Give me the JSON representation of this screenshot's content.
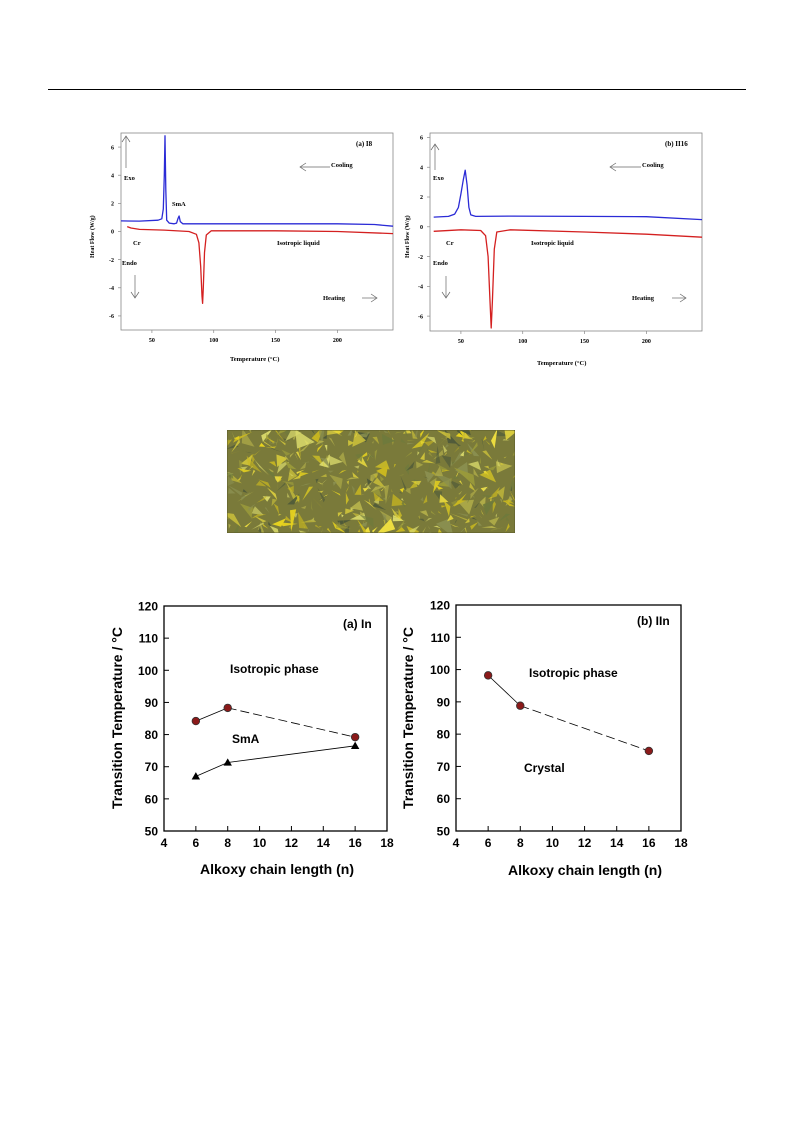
{
  "charts": {
    "dsc_a": {
      "type": "line",
      "title": "(a) I8",
      "xlabel": "Temperature (°C)",
      "ylabel": "Heat Flow (W/g)",
      "xticks": [
        50,
        100,
        150,
        200
      ],
      "yticks": [
        6,
        4,
        2,
        0,
        -2,
        -4,
        -6
      ],
      "xlim": [
        25,
        245
      ],
      "ylim": [
        -7,
        7
      ],
      "labels": {
        "exo": "Exo",
        "endo": "Endo",
        "cooling": "Cooling",
        "heating": "Heating",
        "cr": "Cr",
        "smA": "SmA",
        "iso": "Isotropic liquid"
      },
      "series": [
        {
          "color": "#2b2bd6",
          "points": [
            [
              25,
              0.75
            ],
            [
              40,
              0.74
            ],
            [
              55,
              0.8
            ],
            [
              58,
              0.9
            ],
            [
              59.2,
              1.6
            ],
            [
              60,
              4
            ],
            [
              60.6,
              6.8
            ],
            [
              61.2,
              3
            ],
            [
              62,
              0.8
            ],
            [
              64,
              0.6
            ],
            [
              68,
              0.55
            ],
            [
              70,
              0.6
            ],
            [
              71,
              0.9
            ],
            [
              72,
              1.1
            ],
            [
              73,
              0.7
            ],
            [
              75,
              0.55
            ],
            [
              90,
              0.55
            ],
            [
              150,
              0.55
            ],
            [
              200,
              0.55
            ],
            [
              230,
              0.5
            ],
            [
              245,
              0.38
            ]
          ]
        },
        {
          "color": "#d42020",
          "points": [
            [
              30,
              0.35
            ],
            [
              33,
              0.25
            ],
            [
              40,
              0.15
            ],
            [
              60,
              0.1
            ],
            [
              80,
              0.0
            ],
            [
              86,
              -0.2
            ],
            [
              88,
              -0.8
            ],
            [
              89.5,
              -2.5
            ],
            [
              90.5,
              -4.6
            ],
            [
              91,
              -5.1
            ],
            [
              91.6,
              -4
            ],
            [
              92.5,
              -1.5
            ],
            [
              94,
              -0.25
            ],
            [
              98,
              0.05
            ],
            [
              150,
              0.05
            ],
            [
              200,
              0.0
            ],
            [
              245,
              -0.15
            ]
          ]
        }
      ]
    },
    "dsc_b": {
      "type": "line",
      "title": "(b) II16",
      "xlabel": "Temperature (°C)",
      "ylabel": "Heat Flow (W/g)",
      "xticks": [
        50,
        100,
        150,
        200
      ],
      "yticks": [
        6,
        4,
        2,
        0,
        -2,
        -4,
        -6
      ],
      "xlim": [
        25,
        245
      ],
      "ylim": [
        -7,
        6.3
      ],
      "labels": {
        "exo": "Exo",
        "endo": "Endo",
        "cooling": "Cooling",
        "heating": "Heating",
        "cr": "Cr",
        "iso": "Isotropic liquid"
      },
      "series": [
        {
          "color": "#2b2bd6",
          "points": [
            [
              28,
              0.65
            ],
            [
              40,
              0.7
            ],
            [
              45,
              0.85
            ],
            [
              48,
              1.3
            ],
            [
              50,
              2.2
            ],
            [
              52,
              3.2
            ],
            [
              53.5,
              3.8
            ],
            [
              55,
              2.8
            ],
            [
              56.5,
              1.3
            ],
            [
              58,
              0.8
            ],
            [
              62,
              0.7
            ],
            [
              90,
              0.72
            ],
            [
              150,
              0.7
            ],
            [
              200,
              0.68
            ],
            [
              245,
              0.48
            ]
          ]
        },
        {
          "color": "#d42020",
          "points": [
            [
              28,
              -0.3
            ],
            [
              50,
              -0.2
            ],
            [
              66,
              -0.25
            ],
            [
              70,
              -0.6
            ],
            [
              72,
              -2.0
            ],
            [
              73.5,
              -5.0
            ],
            [
              74.5,
              -6.8
            ],
            [
              75.5,
              -5
            ],
            [
              77,
              -1.5
            ],
            [
              79,
              -0.35
            ],
            [
              90,
              -0.2
            ],
            [
              150,
              -0.35
            ],
            [
              200,
              -0.5
            ],
            [
              245,
              -0.7
            ]
          ]
        }
      ]
    },
    "tt_a": {
      "type": "line",
      "title": "(a) In",
      "xlabel": "Alkoxy chain length (n)",
      "ylabel": "Transition Temperature / °C",
      "xticks": [
        4,
        6,
        8,
        10,
        12,
        14,
        16,
        18
      ],
      "yticks": [
        50,
        60,
        70,
        80,
        90,
        100,
        110,
        120
      ],
      "xlim": [
        4,
        18
      ],
      "ylim": [
        50,
        120
      ],
      "region_labels": {
        "top": "Isotropic phase",
        "middle": "SmA"
      },
      "series": [
        {
          "marker": "circle",
          "x": [
            6,
            8,
            16
          ],
          "y": [
            84.2,
            88.3,
            79.2
          ]
        },
        {
          "marker": "triangle",
          "x": [
            6,
            8,
            16
          ],
          "y": [
            67,
            71.3,
            76.5
          ]
        }
      ]
    },
    "tt_b": {
      "type": "line",
      "title": "(b) IIn",
      "xlabel": "Alkoxy chain length (n)",
      "ylabel": "Transition Temperature / °C",
      "xticks": [
        4,
        6,
        8,
        10,
        12,
        14,
        16,
        18
      ],
      "yticks": [
        50,
        60,
        70,
        80,
        90,
        100,
        110,
        120
      ],
      "xlim": [
        4,
        18
      ],
      "ylim": [
        50,
        120
      ],
      "region_labels": {
        "top": "Isotropic phase",
        "middle": "Crystal"
      },
      "series": [
        {
          "marker": "circle",
          "x": [
            6,
            8,
            16
          ],
          "y": [
            98.2,
            88.8,
            74.8
          ]
        }
      ]
    }
  }
}
